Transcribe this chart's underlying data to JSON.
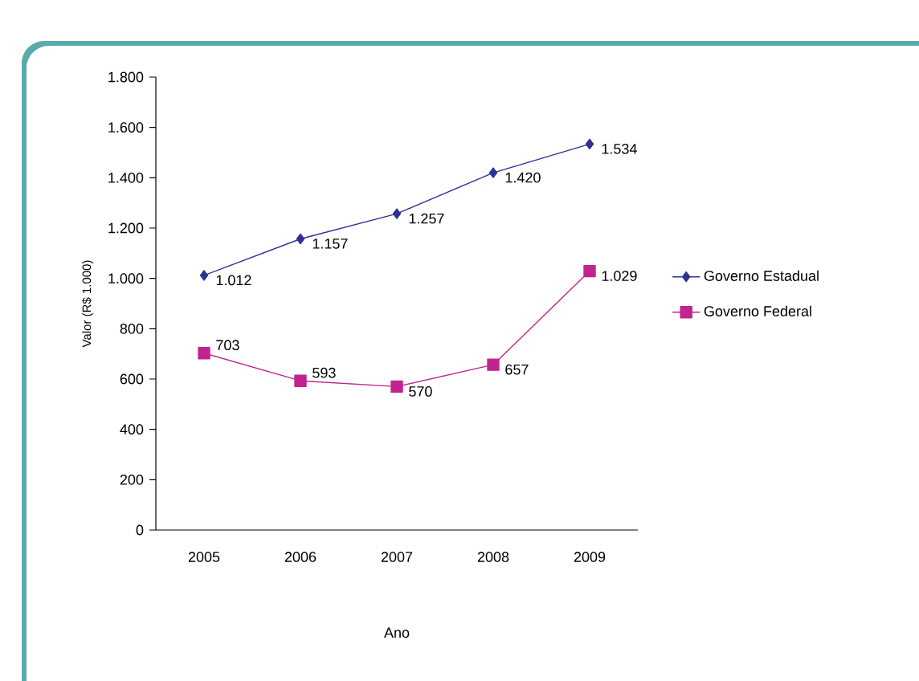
{
  "chart_data": {
    "type": "line",
    "xlabel": "Ano",
    "ylabel": "Valor (R$ 1.000)",
    "categories": [
      "2005",
      "2006",
      "2007",
      "2008",
      "2009"
    ],
    "series": [
      {
        "name": "Governo Estadual",
        "color": "#2e3192",
        "marker": "diamond",
        "values": [
          1012,
          1157,
          1257,
          1420,
          1534
        ],
        "value_labels": [
          "1.012",
          "1.157",
          "1.257",
          "1.420",
          "1.534"
        ]
      },
      {
        "name": "Governo Federal",
        "color": "#c2238f",
        "marker": "square",
        "values": [
          703,
          593,
          570,
          657,
          1029
        ],
        "value_labels": [
          "703",
          "593",
          "570",
          "657",
          "1.029"
        ]
      }
    ],
    "ylim": [
      0,
      1800
    ],
    "yticks": [
      0,
      200,
      400,
      600,
      800,
      {
        "value": 1000,
        "label": "1.000"
      },
      {
        "value": 1200,
        "label": "1.200"
      },
      {
        "value": 1400,
        "label": "1.400"
      },
      {
        "value": 1600,
        "label": "1.600"
      },
      {
        "value": 1800,
        "label": "1.800"
      }
    ],
    "grid": false,
    "legend": "right",
    "line_style": "solid"
  }
}
